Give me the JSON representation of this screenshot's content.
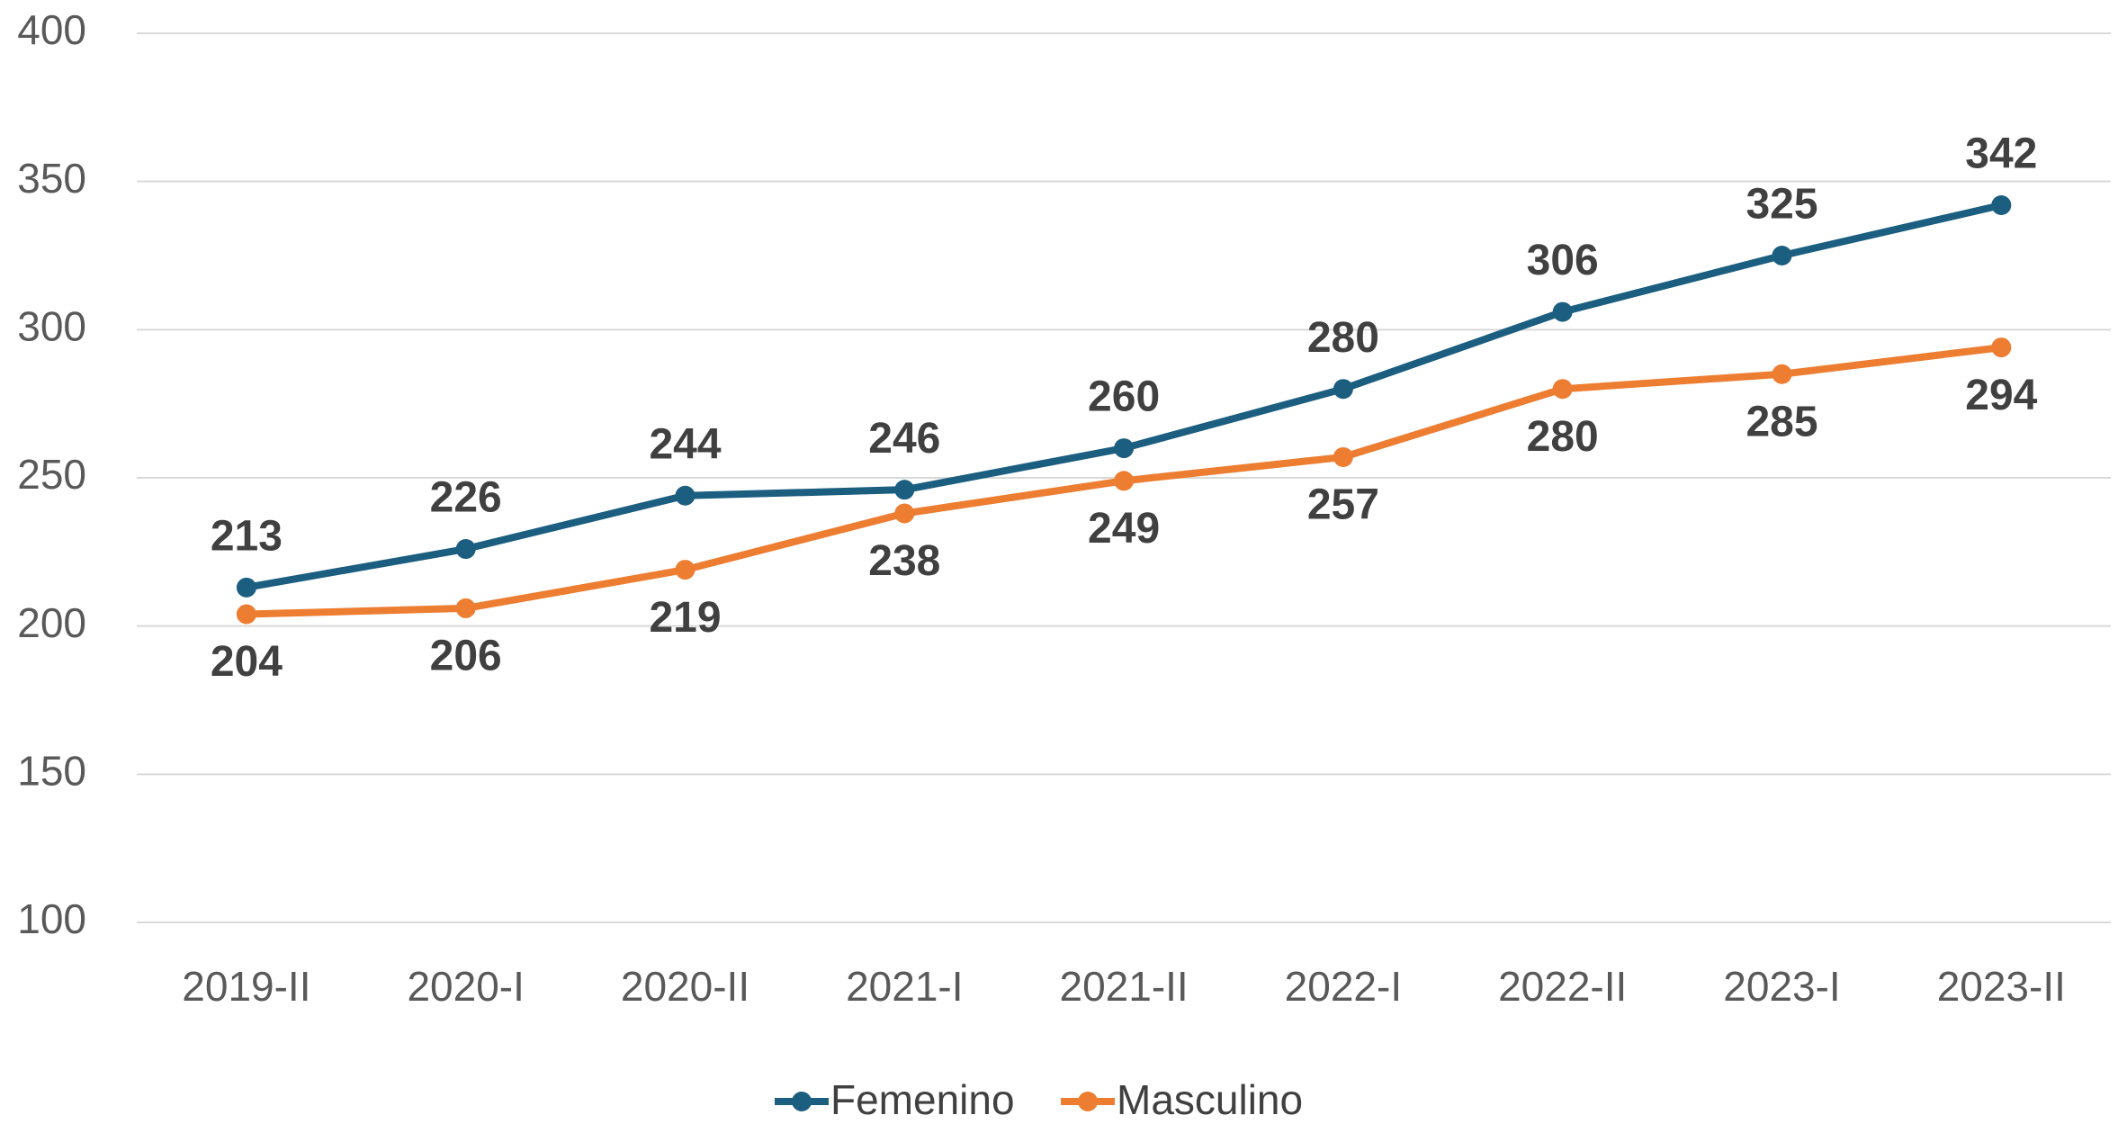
{
  "chart_data": {
    "type": "line",
    "categories": [
      "2019-II",
      "2020-I",
      "2020-II",
      "2021-I",
      "2021-II",
      "2022-I",
      "2022-II",
      "2023-I",
      "2023-II"
    ],
    "series": [
      {
        "name": "Femenino",
        "color": "#1b5e80",
        "values": [
          213,
          226,
          244,
          246,
          260,
          280,
          306,
          325,
          342
        ]
      },
      {
        "name": "Masculino",
        "color": "#ed7d31",
        "values": [
          204,
          206,
          219,
          238,
          249,
          257,
          280,
          285,
          294
        ]
      }
    ],
    "ylim": [
      100,
      400
    ],
    "yticks": [
      100,
      150,
      200,
      250,
      300,
      350,
      400
    ],
    "grid": true,
    "legend": "bottom"
  }
}
